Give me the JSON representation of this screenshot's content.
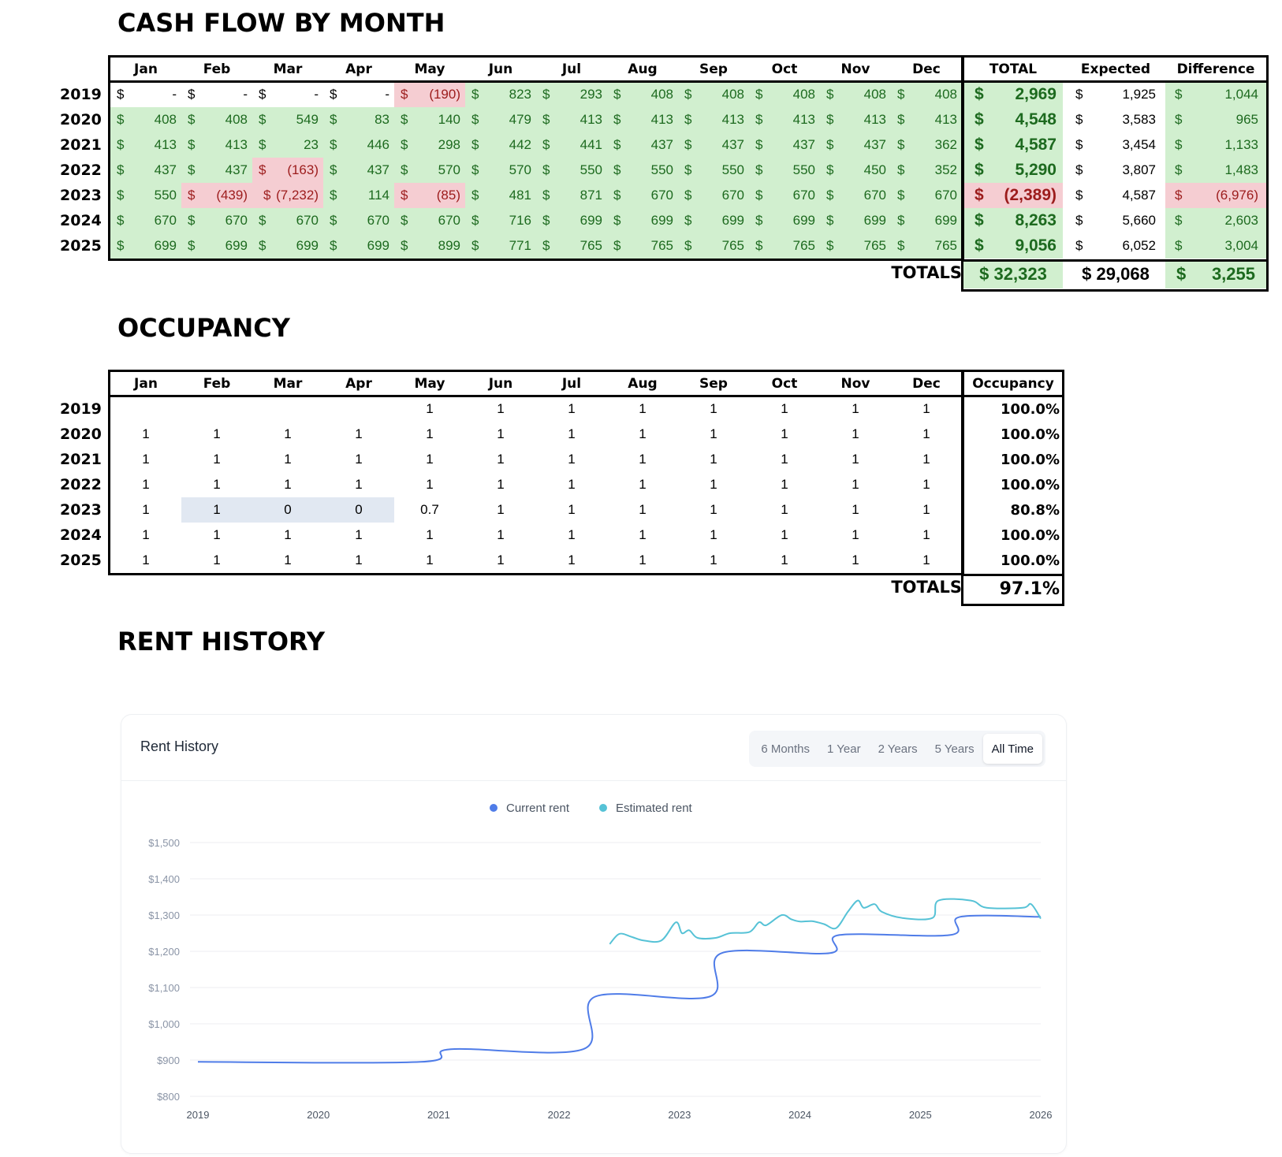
{
  "cash_flow": {
    "title": "CASH FLOW BY MONTH",
    "months": [
      "Jan",
      "Feb",
      "Mar",
      "Apr",
      "May",
      "Jun",
      "Jul",
      "Aug",
      "Sep",
      "Oct",
      "Nov",
      "Dec"
    ],
    "summary_headers": [
      "TOTAL",
      "Expected",
      "Difference"
    ],
    "currency_symbol": "$",
    "rows": [
      {
        "year": "2019",
        "cells": [
          "-",
          "-",
          "-",
          "-",
          "(190)",
          "823",
          "293",
          "408",
          "408",
          "408",
          "408",
          "408"
        ],
        "total": "2,969",
        "expected": "1,925",
        "difference": "1,044"
      },
      {
        "year": "2020",
        "cells": [
          "408",
          "408",
          "549",
          "83",
          "140",
          "479",
          "413",
          "413",
          "413",
          "413",
          "413",
          "413"
        ],
        "total": "4,548",
        "expected": "3,583",
        "difference": "965"
      },
      {
        "year": "2021",
        "cells": [
          "413",
          "413",
          "23",
          "446",
          "298",
          "442",
          "441",
          "437",
          "437",
          "437",
          "437",
          "362"
        ],
        "total": "4,587",
        "expected": "3,454",
        "difference": "1,133"
      },
      {
        "year": "2022",
        "cells": [
          "437",
          "437",
          "(163)",
          "437",
          "570",
          "570",
          "550",
          "550",
          "550",
          "550",
          "450",
          "352"
        ],
        "total": "5,290",
        "expected": "3,807",
        "difference": "1,483"
      },
      {
        "year": "2023",
        "cells": [
          "550",
          "(439)",
          "(7,232)",
          "114",
          "(85)",
          "481",
          "871",
          "670",
          "670",
          "670",
          "670",
          "670"
        ],
        "total": "(2,389)",
        "expected": "4,587",
        "difference": "(6,976)"
      },
      {
        "year": "2024",
        "cells": [
          "670",
          "670",
          "670",
          "670",
          "670",
          "716",
          "699",
          "699",
          "699",
          "699",
          "699",
          "699"
        ],
        "total": "8,263",
        "expected": "5,660",
        "difference": "2,603"
      },
      {
        "year": "2025",
        "cells": [
          "699",
          "699",
          "699",
          "699",
          "899",
          "771",
          "765",
          "765",
          "765",
          "765",
          "765",
          "765"
        ],
        "total": "9,056",
        "expected": "6,052",
        "difference": "3,004"
      }
    ],
    "totals_label": "TOTALS",
    "totals": {
      "total": "$ 32,323",
      "expected": "$ 29,068",
      "difference_symbol": "$",
      "difference": "3,255"
    }
  },
  "occupancy": {
    "title": "OCCUPANCY",
    "months": [
      "Jan",
      "Feb",
      "Mar",
      "Apr",
      "May",
      "Jun",
      "Jul",
      "Aug",
      "Sep",
      "Oct",
      "Nov",
      "Dec"
    ],
    "pct_header": "Occupancy",
    "rows": [
      {
        "year": "2019",
        "cells": [
          "",
          "",
          "",
          "",
          "1",
          "1",
          "1",
          "1",
          "1",
          "1",
          "1",
          "1"
        ],
        "pct": "100.0%"
      },
      {
        "year": "2020",
        "cells": [
          "1",
          "1",
          "1",
          "1",
          "1",
          "1",
          "1",
          "1",
          "1",
          "1",
          "1",
          "1"
        ],
        "pct": "100.0%"
      },
      {
        "year": "2021",
        "cells": [
          "1",
          "1",
          "1",
          "1",
          "1",
          "1",
          "1",
          "1",
          "1",
          "1",
          "1",
          "1"
        ],
        "pct": "100.0%"
      },
      {
        "year": "2022",
        "cells": [
          "1",
          "1",
          "1",
          "1",
          "1",
          "1",
          "1",
          "1",
          "1",
          "1",
          "1",
          "1"
        ],
        "pct": "100.0%"
      },
      {
        "year": "2023",
        "cells": [
          "1",
          "1",
          "0",
          "0",
          "0.7",
          "1",
          "1",
          "1",
          "1",
          "1",
          "1",
          "1"
        ],
        "pct": "80.8%"
      },
      {
        "year": "2024",
        "cells": [
          "1",
          "1",
          "1",
          "1",
          "1",
          "1",
          "1",
          "1",
          "1",
          "1",
          "1",
          "1"
        ],
        "pct": "100.0%"
      },
      {
        "year": "2025",
        "cells": [
          "1",
          "1",
          "1",
          "1",
          "1",
          "1",
          "1",
          "1",
          "1",
          "1",
          "1",
          "1"
        ],
        "pct": "100.0%"
      }
    ],
    "totals_label": "TOTALS",
    "total_pct": "97.1%"
  },
  "rent_history": {
    "section_title": "RENT HISTORY",
    "card_title": "Rent History",
    "ranges": [
      "6 Months",
      "1 Year",
      "2 Years",
      "5 Years",
      "All Time"
    ],
    "active_range": "All Time",
    "colors": {
      "current": "#4f7ce8",
      "estimated": "#56c2d6",
      "grid": "#eceef2",
      "axis_text": "#8a94a6"
    }
  },
  "chart_data": {
    "type": "line",
    "title": "",
    "legend": [
      "Current rent",
      "Estimated rent"
    ],
    "legend_position": "top-center",
    "grid": true,
    "x_ticks": [
      "2019",
      "2020",
      "2021",
      "2022",
      "2023",
      "2024",
      "2025",
      "2026"
    ],
    "y_ticks": [
      "$800",
      "$900",
      "$1,000",
      "$1,100",
      "$1,200",
      "$1,300",
      "$1,400",
      "$1,500"
    ],
    "ylim": [
      800,
      1500
    ],
    "xlim": [
      2019.0,
      2026.0
    ],
    "series": [
      {
        "name": "Current rent",
        "points": [
          [
            2019.0,
            895
          ],
          [
            2020.85,
            895
          ],
          [
            2021.1,
            930
          ],
          [
            2022.2,
            930
          ],
          [
            2022.3,
            1075
          ],
          [
            2023.25,
            1075
          ],
          [
            2023.35,
            1195
          ],
          [
            2024.25,
            1195
          ],
          [
            2024.33,
            1245
          ],
          [
            2025.25,
            1245
          ],
          [
            2025.33,
            1295
          ],
          [
            2026.0,
            1295
          ]
        ]
      },
      {
        "name": "Estimated rent",
        "points": [
          [
            2022.42,
            1220
          ],
          [
            2022.5,
            1248
          ],
          [
            2022.6,
            1240
          ],
          [
            2022.7,
            1230
          ],
          [
            2022.85,
            1230
          ],
          [
            2022.97,
            1280
          ],
          [
            2023.02,
            1250
          ],
          [
            2023.08,
            1258
          ],
          [
            2023.15,
            1237
          ],
          [
            2023.3,
            1237
          ],
          [
            2023.42,
            1250
          ],
          [
            2023.58,
            1253
          ],
          [
            2023.66,
            1280
          ],
          [
            2023.72,
            1272
          ],
          [
            2023.85,
            1300
          ],
          [
            2023.93,
            1288
          ],
          [
            2024.0,
            1282
          ],
          [
            2024.1,
            1283
          ],
          [
            2024.2,
            1275
          ],
          [
            2024.3,
            1264
          ],
          [
            2024.4,
            1310
          ],
          [
            2024.48,
            1340
          ],
          [
            2024.53,
            1320
          ],
          [
            2024.62,
            1330
          ],
          [
            2024.68,
            1309
          ],
          [
            2024.85,
            1292
          ],
          [
            2025.1,
            1292
          ],
          [
            2025.15,
            1340
          ],
          [
            2025.42,
            1340
          ],
          [
            2025.55,
            1320
          ],
          [
            2025.85,
            1320
          ],
          [
            2025.92,
            1330
          ],
          [
            2026.0,
            1290
          ]
        ]
      }
    ]
  }
}
